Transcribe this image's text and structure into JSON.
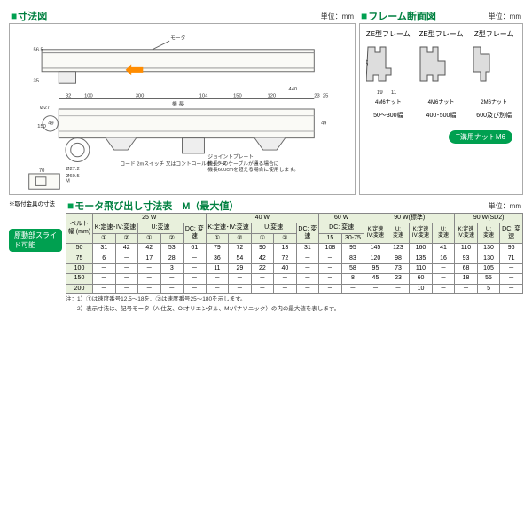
{
  "sections": {
    "dim_drawing": {
      "title": "寸法図",
      "unit": "単位：mm"
    },
    "frame_cross": {
      "title": "フレーム断面図",
      "unit": "単位：mm"
    },
    "motor_table": {
      "title": "モータ飛び出し寸法表　M（最大値）",
      "unit": "単位：mm"
    }
  },
  "frame_types": [
    {
      "label": "ZE型フレーム",
      "width": "50～300幅",
      "nut": "4M6ナット"
    },
    {
      "label": "ZE型フレーム",
      "width": "400･500幅",
      "nut": "4M6ナット"
    },
    {
      "label": "Z型フレーム",
      "width": "600及び別幅",
      "nut": "2M6ナット"
    }
  ],
  "t_nut": "T溝用ナットM6",
  "slide_label": "原動部スライド可能",
  "bracket_note": "※取付金具の寸法",
  "dims": {
    "top_labels": [
      "モータ"
    ],
    "horiz": [
      "Ø27",
      "32",
      "100",
      "300",
      "機 長",
      "104",
      "150",
      "120",
      "440",
      "23",
      "25"
    ],
    "vert": [
      "56.5",
      "35",
      "150",
      "49",
      "49",
      "M",
      "70"
    ],
    "circles": [
      "Ø27.2",
      "Ø60.5"
    ],
    "frame_dims": [
      "34",
      "19",
      "11"
    ]
  },
  "table": {
    "belt_header": "ベルト幅\n(mm)",
    "power_groups": [
      "25 W",
      "40 W",
      "60 W",
      "90 W(標準)",
      "90 W(SD2)"
    ],
    "sub_headers_kiv": "K:定速･IV:変速",
    "sub_headers_u": "U:変速",
    "sub_headers_dc": "DC:\n変速",
    "circled": [
      "①",
      "②",
      "①",
      "②"
    ],
    "group3_sub": [
      "DC:\n変速",
      "15",
      "30-75"
    ],
    "rows": [
      {
        "w": "50",
        "c": [
          "31",
          "42",
          "42",
          "53",
          "61",
          "79",
          "72",
          "90",
          "13",
          "31",
          "108",
          "95",
          "145",
          "123",
          "160",
          "41",
          "110",
          "130",
          "96"
        ]
      },
      {
        "w": "75",
        "c": [
          "6",
          "－",
          "17",
          "28",
          "－",
          "36",
          "54",
          "42",
          "72",
          "－",
          "－",
          "83",
          "120",
          "98",
          "135",
          "16",
          "93",
          "130",
          "71"
        ]
      },
      {
        "w": "100",
        "c": [
          "－",
          "－",
          "－",
          "3",
          "－",
          "11",
          "29",
          "22",
          "40",
          "－",
          "－",
          "58",
          "95",
          "73",
          "110",
          "－",
          "68",
          "105",
          "－"
        ]
      },
      {
        "w": "150",
        "c": [
          "－",
          "－",
          "－",
          "－",
          "－",
          "－",
          "－",
          "－",
          "－",
          "－",
          "－",
          "8",
          "45",
          "23",
          "60",
          "－",
          "18",
          "55",
          "－"
        ]
      },
      {
        "w": "200",
        "c": [
          "－",
          "－",
          "－",
          "－",
          "－",
          "－",
          "－",
          "－",
          "－",
          "－",
          "－",
          "－",
          "－",
          "－",
          "10",
          "－",
          "－",
          "5",
          "－"
        ]
      }
    ],
    "note1": "注：1）①は速度番号12.5～18を、②は速度番号25～180を示します。",
    "note2": "　　2）表示寸法は、記号モータ（A:住友、O:オリエンタル、M:パナソニック）の内の最大値を表します。"
  }
}
